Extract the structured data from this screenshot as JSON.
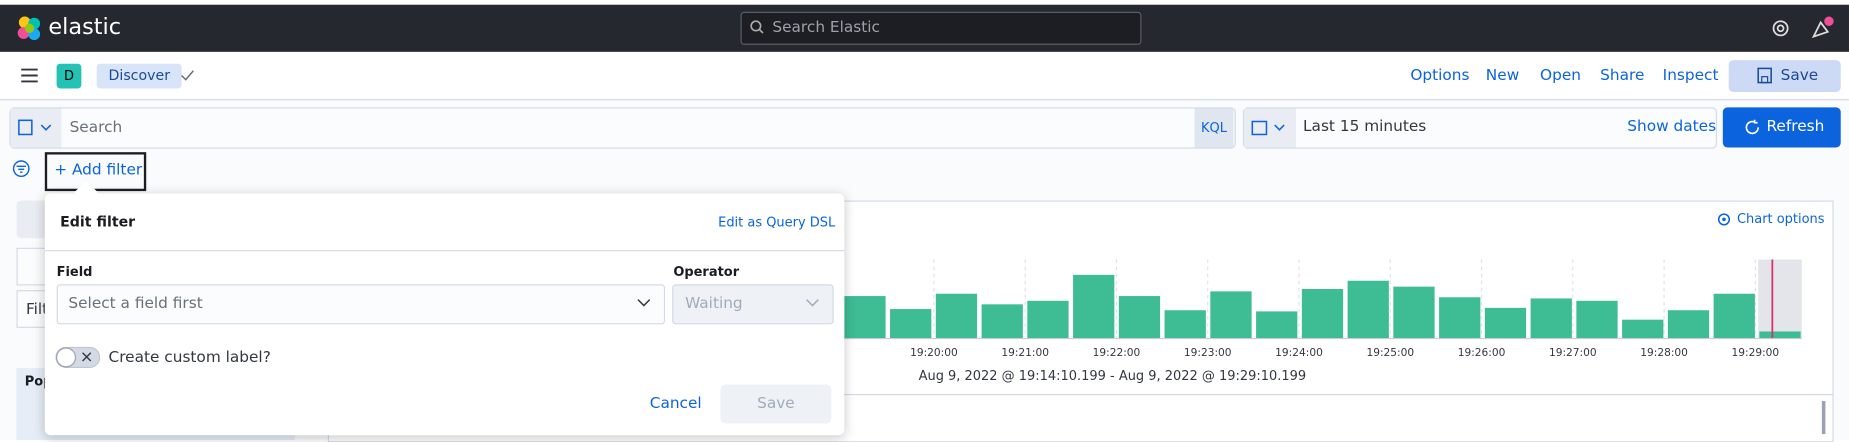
{
  "header": {
    "brand": "elastic",
    "search_placeholder": "Search Elastic"
  },
  "app_bar": {
    "space_badge": "D",
    "breadcrumb": "Discover",
    "links": [
      "Options",
      "New",
      "Open",
      "Share",
      "Inspect"
    ],
    "save": "Save"
  },
  "query_bar": {
    "placeholder": "Search",
    "language": "KQL",
    "time_range": "Last 15 minutes",
    "show_dates": "Show dates",
    "refresh": "Refresh"
  },
  "filter_bar": {
    "add_filter": "+ Add filter"
  },
  "sidebar": {
    "filter_fragment": "Filt",
    "popular_fragment": "Pop"
  },
  "edit_filter": {
    "title": "Edit filter",
    "edit_dsl": "Edit as Query DSL",
    "field_label": "Field",
    "field_placeholder": "Select a field first",
    "operator_label": "Operator",
    "operator_placeholder": "Waiting",
    "custom_label": "Create custom label?",
    "cancel": "Cancel",
    "save": "Save"
  },
  "histogram": {
    "chart_options": "Chart options",
    "x_labels": [
      "19:20:00",
      "19:21:00",
      "19:22:00",
      "19:23:00",
      "19:24:00",
      "19:25:00",
      "19:26:00",
      "19:27:00",
      "19:28:00",
      "19:29:00"
    ],
    "values": [
      36,
      25,
      38,
      29,
      32,
      54,
      36,
      24,
      40,
      23,
      42,
      49,
      44,
      35,
      26,
      34,
      32,
      16,
      24,
      38,
      6
    ],
    "range": "Aug 9, 2022 @ 19:14:10.199 - Aug 9, 2022 @ 19:29:10.199",
    "color": "#3ebc94"
  }
}
